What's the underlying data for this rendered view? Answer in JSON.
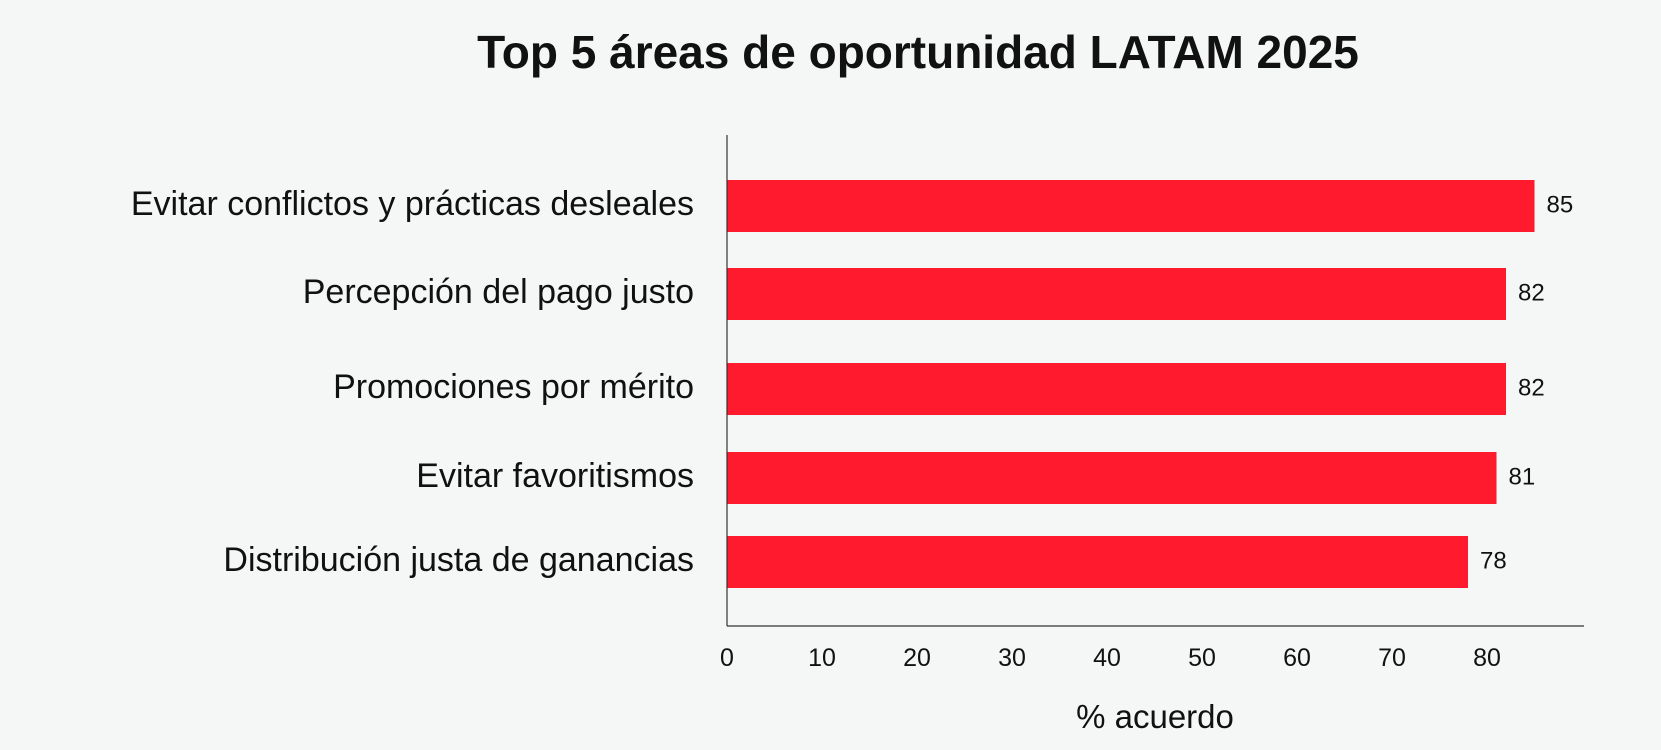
{
  "chart_data": {
    "type": "bar",
    "orientation": "horizontal",
    "title": "Top 5 áreas de oportunidad LATAM 2025",
    "xlabel": "% acuerdo",
    "ylabel": "",
    "categories": [
      "Evitar conflictos y prácticas desleales",
      "Percepción del pago justo",
      "Promociones por mérito",
      "Evitar favoritismos",
      "Distribución justa de ganancias"
    ],
    "values": [
      85,
      82,
      82,
      81,
      78
    ],
    "value_labels": [
      "85",
      "82",
      "82",
      "81",
      "78"
    ],
    "xticks": [
      0,
      10,
      20,
      30,
      40,
      50,
      60,
      70,
      80
    ],
    "xtick_labels": [
      "0",
      "10",
      "20",
      "30",
      "40",
      "50",
      "60",
      "70",
      "80"
    ],
    "xlim": [
      0,
      90
    ],
    "grid": false,
    "legend": "none",
    "colors": {
      "bar": "#ff1a2d",
      "axis": "#333333",
      "text": "#111111",
      "background": "#f5f7f6"
    }
  }
}
